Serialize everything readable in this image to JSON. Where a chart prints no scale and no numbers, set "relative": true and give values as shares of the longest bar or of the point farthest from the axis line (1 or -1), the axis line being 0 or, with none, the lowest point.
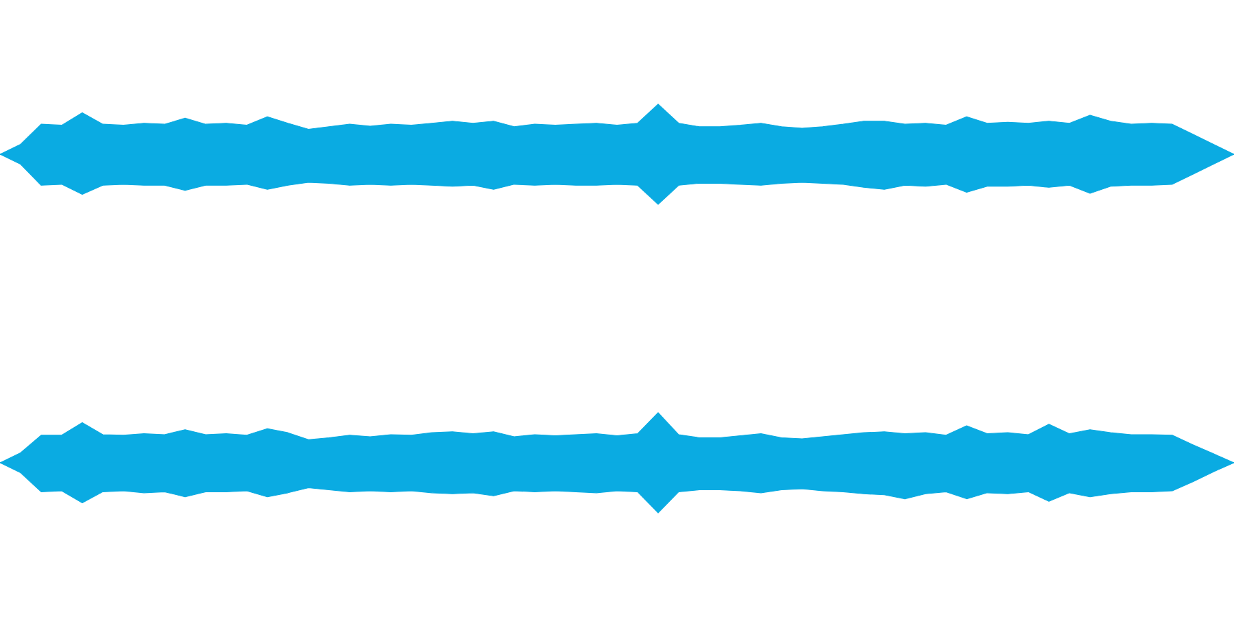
{
  "chart_data": [
    {
      "type": "area",
      "relative": true,
      "categories": [
        null,
        null,
        null,
        null,
        null,
        null,
        null,
        null,
        null,
        null,
        null,
        null,
        null,
        null,
        null,
        null,
        null,
        null,
        null,
        null,
        null,
        null,
        null,
        null,
        null,
        null,
        null,
        null,
        null,
        null,
        null,
        null,
        null,
        null,
        null,
        null,
        null,
        null,
        null,
        null,
        null,
        null,
        null,
        null,
        null,
        null,
        null,
        null,
        null,
        null,
        null,
        null,
        null,
        null,
        null,
        null,
        null,
        null,
        null,
        null,
        null
      ],
      "tick_labels": false,
      "series": [
        {
          "color": "#0aabe2",
          "values": [
            0,
            0.2,
            0.6,
            0.58,
            0.83,
            0.6,
            0.58,
            0.62,
            0.6,
            0.72,
            0.6,
            0.62,
            0.58,
            0.75,
            0.62,
            0.5,
            0.55,
            0.6,
            0.56,
            0.6,
            0.58,
            0.62,
            0.66,
            0.62,
            0.66,
            0.55,
            0.6,
            0.58,
            0.6,
            0.62,
            0.58,
            0.62,
            1.0,
            0.62,
            0.55,
            0.55,
            0.58,
            0.62,
            0.55,
            0.52,
            0.55,
            0.6,
            0.66,
            0.66,
            0.6,
            0.62,
            0.58,
            0.75,
            0.62,
            0.64,
            0.62,
            0.66,
            0.62,
            0.78,
            0.66,
            0.6,
            0.62,
            0.6,
            0.4,
            0.2,
            0
          ]
        },
        {
          "color": "#0aabe2",
          "values": [
            0,
            -0.2,
            -0.62,
            -0.6,
            -0.8,
            -0.62,
            -0.6,
            -0.62,
            -0.62,
            -0.72,
            -0.62,
            -0.62,
            -0.6,
            -0.7,
            -0.62,
            -0.56,
            -0.58,
            -0.62,
            -0.6,
            -0.62,
            -0.6,
            -0.62,
            -0.64,
            -0.62,
            -0.7,
            -0.6,
            -0.62,
            -0.6,
            -0.62,
            -0.62,
            -0.6,
            -0.62,
            -1.0,
            -0.62,
            -0.58,
            -0.58,
            -0.6,
            -0.62,
            -0.58,
            -0.56,
            -0.58,
            -0.6,
            -0.66,
            -0.7,
            -0.62,
            -0.64,
            -0.6,
            -0.76,
            -0.64,
            -0.64,
            -0.62,
            -0.66,
            -0.62,
            -0.78,
            -0.64,
            -0.62,
            -0.62,
            -0.6,
            -0.4,
            -0.2,
            0
          ]
        }
      ]
    },
    {
      "type": "area",
      "relative": true,
      "categories": [
        null,
        null,
        null,
        null,
        null,
        null,
        null,
        null,
        null,
        null,
        null,
        null,
        null,
        null,
        null,
        null,
        null,
        null,
        null,
        null,
        null,
        null,
        null,
        null,
        null,
        null,
        null,
        null,
        null,
        null,
        null,
        null,
        null,
        null,
        null,
        null,
        null,
        null,
        null,
        null,
        null,
        null,
        null,
        null,
        null,
        null,
        null,
        null,
        null,
        null,
        null,
        null,
        null,
        null,
        null,
        null,
        null,
        null,
        null,
        null,
        null
      ],
      "tick_labels": false,
      "series": [
        {
          "color": "#0aabe2",
          "values": [
            0,
            0.2,
            0.55,
            0.55,
            0.8,
            0.56,
            0.55,
            0.58,
            0.56,
            0.66,
            0.56,
            0.58,
            0.55,
            0.68,
            0.6,
            0.46,
            0.5,
            0.55,
            0.52,
            0.56,
            0.55,
            0.6,
            0.62,
            0.58,
            0.62,
            0.52,
            0.56,
            0.54,
            0.56,
            0.58,
            0.54,
            0.58,
            1.0,
            0.56,
            0.5,
            0.5,
            0.54,
            0.58,
            0.5,
            0.48,
            0.52,
            0.56,
            0.6,
            0.62,
            0.58,
            0.6,
            0.55,
            0.74,
            0.58,
            0.6,
            0.56,
            0.77,
            0.58,
            0.66,
            0.6,
            0.56,
            0.56,
            0.55,
            0.36,
            0.18,
            0
          ]
        },
        {
          "color": "#0aabe2",
          "values": [
            0,
            -0.2,
            -0.58,
            -0.56,
            -0.8,
            -0.58,
            -0.56,
            -0.6,
            -0.58,
            -0.68,
            -0.58,
            -0.58,
            -0.56,
            -0.68,
            -0.6,
            -0.5,
            -0.54,
            -0.58,
            -0.56,
            -0.58,
            -0.56,
            -0.6,
            -0.62,
            -0.6,
            -0.66,
            -0.56,
            -0.58,
            -0.56,
            -0.58,
            -0.6,
            -0.56,
            -0.58,
            -1.0,
            -0.58,
            -0.54,
            -0.54,
            -0.56,
            -0.6,
            -0.54,
            -0.52,
            -0.56,
            -0.58,
            -0.62,
            -0.64,
            -0.72,
            -0.62,
            -0.58,
            -0.72,
            -0.6,
            -0.62,
            -0.58,
            -0.77,
            -0.6,
            -0.68,
            -0.62,
            -0.58,
            -0.58,
            -0.56,
            -0.38,
            -0.18,
            0
          ]
        }
      ]
    }
  ]
}
